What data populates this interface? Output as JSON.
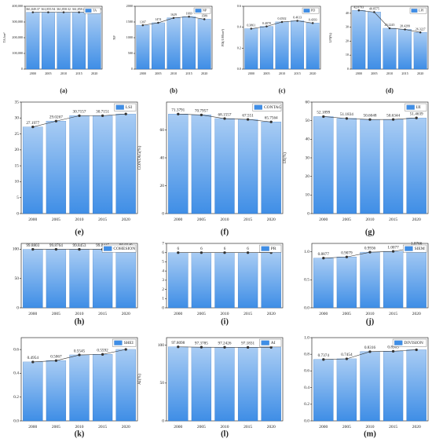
{
  "chart_data": [
    {
      "type": "bar",
      "panel": "(a)",
      "ylabel": "TA/hm²",
      "categories": [
        "2000",
        "2005",
        "2010",
        "2015",
        "2020"
      ],
      "series": [
        {
          "name": "TA",
          "color": "#3f8ee6",
          "values": [
            361849.37,
            361855.94,
            361858.32,
            361858.25,
            361858.32
          ],
          "value_labels": [
            "361,849.37",
            "361,855.94",
            "361,858.32",
            "361,858.25",
            "361,858.32"
          ]
        }
      ],
      "ylim": [
        0,
        400000
      ],
      "yticks": [
        0,
        {
          "value": 100000,
          "label": "100,000"
        },
        {
          "value": 200000,
          "label": "200,000"
        },
        {
          "value": 300000,
          "label": "300,000"
        },
        {
          "value": 400000,
          "label": "400,000"
        }
      ],
      "legend": "top-right"
    },
    {
      "type": "bar",
      "panel": "(b)",
      "ylabel": "NP",
      "categories": [
        "2000",
        "2005",
        "2010",
        "2015",
        "2020"
      ],
      "series": [
        {
          "name": "NP",
          "color": "#3f8ee6",
          "values": [
            1397,
            1474,
            1629,
            1669,
            1589
          ]
        }
      ],
      "ylim": [
        0,
        2000
      ],
      "yticks": [
        0,
        500,
        1000,
        1500,
        2000
      ],
      "legend": "top-right"
    },
    {
      "type": "bar",
      "panel": "(c)",
      "ylabel": "PD(/100hm²)",
      "categories": [
        "2000",
        "2005",
        "2010",
        "2015",
        "2020"
      ],
      "series": [
        {
          "name": "PD",
          "color": "#3f8ee6",
          "values": [
            0.3861,
            0.4078,
            0.4502,
            0.4613,
            0.4393
          ]
        }
      ],
      "ylim": [
        0,
        0.6
      ],
      "yticks": [
        {
          "value": 0,
          "label": "0.0"
        },
        0.2,
        0.4,
        0.6
      ],
      "legend": "top-right"
    },
    {
      "type": "bar",
      "panel": "(d)",
      "ylabel": "LPI(%)",
      "categories": [
        "2000",
        "2005",
        "2010",
        "2015",
        "2020"
      ],
      "series": [
        {
          "name": "LPI",
          "color": "#3f8ee6",
          "values": [
            42.0793,
            40.8575,
            29.2245,
            28.4299,
            26.3227
          ]
        }
      ],
      "ylim": [
        0,
        45
      ],
      "yticks": [
        0,
        10,
        20,
        30,
        40
      ],
      "legend": "top-right"
    },
    {
      "type": "bar",
      "panel": "(e)",
      "categories": [
        "2000",
        "2005",
        "2010",
        "2015",
        "2020"
      ],
      "series": [
        {
          "name": "LSI",
          "color": "#3f8ee6",
          "values": [
            27.1977,
            29.0267,
            30.7157,
            30.7151,
            31.2586
          ]
        }
      ],
      "ylim": [
        0,
        35
      ],
      "yticks": [
        0,
        5,
        10,
        15,
        20,
        25,
        30,
        35
      ],
      "legend": "top-right"
    },
    {
      "type": "bar",
      "panel": "(f)",
      "ylabel": "CONTAG(%)",
      "categories": [
        "2000",
        "2005",
        "2010",
        "2015",
        "2020"
      ],
      "series": [
        {
          "name": "CONTAG",
          "color": "#3f8ee6",
          "values": [
            71.3791,
            70.7957,
            68.1557,
            67.551,
            65.7564
          ]
        }
      ],
      "ylim": [
        0,
        80
      ],
      "yticks": [
        0,
        20,
        40,
        60
      ],
      "legend": "top-right"
    },
    {
      "type": "bar",
      "panel": "(g)",
      "ylabel": "IJI(%)",
      "categories": [
        "2000",
        "2005",
        "2010",
        "2015",
        "2020"
      ],
      "series": [
        {
          "name": "IJI",
          "color": "#3f8ee6",
          "values": [
            52.1899,
            51.1834,
            50.6048,
            50.6344,
            51.4639
          ]
        }
      ],
      "ylim": [
        0,
        60
      ],
      "yticks": [
        0,
        10,
        20,
        30,
        40,
        50,
        60
      ],
      "legend": "top-right"
    },
    {
      "type": "bar",
      "panel": "(h)",
      "categories": [
        "2000",
        "2005",
        "2010",
        "2015",
        "2020"
      ],
      "series": [
        {
          "name": "COHESION",
          "color": "#3f8ee6",
          "values": [
            99.8803,
            99.8764,
            99.8453,
            99.8415,
            99.8349
          ]
        }
      ],
      "ylim": [
        0,
        110
      ],
      "yticks": [
        0,
        50,
        100
      ],
      "legend": "top-right"
    },
    {
      "type": "bar",
      "panel": "(i)",
      "categories": [
        "2000",
        "2005",
        "2010",
        "2015",
        "2020"
      ],
      "series": [
        {
          "name": "PR",
          "color": "#3f8ee6",
          "values": [
            6,
            6,
            6,
            6,
            6
          ]
        }
      ],
      "ylim": [
        0,
        7
      ],
      "yticks": [
        0,
        1,
        2,
        3,
        4,
        5,
        6,
        7
      ],
      "legend": "top-right"
    },
    {
      "type": "bar",
      "panel": "(j)",
      "categories": [
        "2000",
        "2005",
        "2010",
        "2015",
        "2020"
      ],
      "series": [
        {
          "name": "SIEM",
          "color": "#3f8ee6",
          "values": [
            0.8877,
            0.9079,
            0.9936,
            1.0077,
            1.0766
          ]
        }
      ],
      "ylim": [
        0,
        1.15
      ],
      "yticks": [
        {
          "value": 0,
          "label": "0.0"
        },
        0.5,
        {
          "value": 1,
          "label": "1.0"
        }
      ],
      "legend": "top-right"
    },
    {
      "type": "bar",
      "panel": "(k)",
      "categories": [
        "2000",
        "2005",
        "2010",
        "2015",
        "2020"
      ],
      "series": [
        {
          "name": "SHEI",
          "color": "#3f8ee6",
          "values": [
            0.4954,
            0.5067,
            0.5545,
            0.5592,
            0.6009
          ]
        }
      ],
      "ylim": [
        0,
        0.7
      ],
      "yticks": [
        {
          "value": 0,
          "label": "0.0"
        },
        0.2,
        0.4,
        0.6
      ],
      "legend": "top-right"
    },
    {
      "type": "bar",
      "panel": "(l)",
      "ylabel": "AI(%)",
      "categories": [
        "2000",
        "2005",
        "2010",
        "2015",
        "2020"
      ],
      "series": [
        {
          "name": "AI",
          "color": "#3f8ee6",
          "values": [
            97.8098,
            97.3785,
            97.2426,
            97.1831,
            97.1117
          ]
        }
      ],
      "ylim": [
        0,
        110
      ],
      "yticks": [
        0,
        50,
        100
      ],
      "legend": "top-right"
    },
    {
      "type": "bar",
      "panel": "(m)",
      "categories": [
        "2000",
        "2005",
        "2010",
        "2015",
        "2020"
      ],
      "series": [
        {
          "name": "DIVISION",
          "color": "#3f8ee6",
          "values": [
            0.7374,
            0.7454,
            0.8316,
            0.8363,
            0.8541
          ]
        }
      ],
      "ylim": [
        0,
        1.0
      ],
      "yticks": [
        {
          "value": 0,
          "label": "0.0"
        },
        0.2,
        0.4,
        0.6,
        0.8,
        {
          "value": 1,
          "label": "1.0"
        }
      ],
      "legend": "top-right"
    }
  ]
}
